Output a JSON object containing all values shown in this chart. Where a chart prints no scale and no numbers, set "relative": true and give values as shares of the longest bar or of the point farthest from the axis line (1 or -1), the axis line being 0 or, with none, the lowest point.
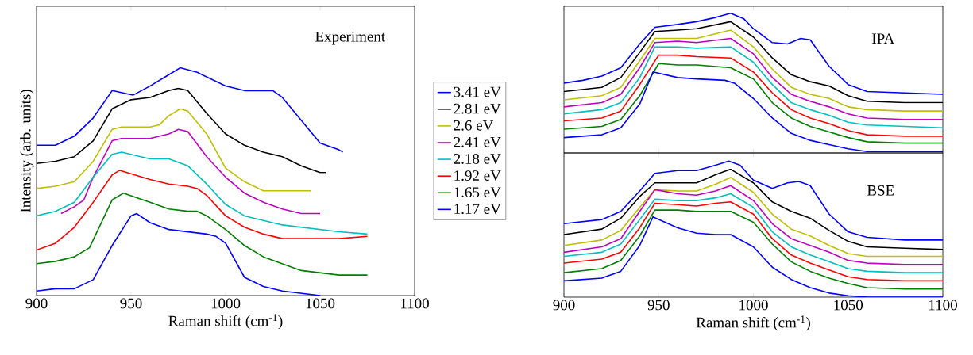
{
  "chart_data": [
    {
      "type": "line",
      "title": "Experiment",
      "xlabel": "Raman shift (cm$^{-1}$)",
      "ylabel": "Intensity (arb. units)",
      "relative": true,
      "xlim": [
        900,
        1100
      ],
      "xticks": [
        900,
        950,
        1000,
        1050,
        1100
      ],
      "tick_labels": "x",
      "legend": "right",
      "series": [
        {
          "name": "3.41 eV",
          "color": "#0000ff",
          "x": [
            900,
            910,
            920,
            930,
            940,
            951,
            960,
            970,
            976,
            985,
            1000,
            1010,
            1020,
            1025,
            1030,
            1040,
            1050,
            1060,
            1062
          ],
          "values": [
            0.66,
            0.66,
            0.7,
            0.78,
            0.9,
            0.88,
            0.92,
            0.97,
            1.0,
            0.98,
            0.92,
            0.9,
            0.9,
            0.9,
            0.87,
            0.77,
            0.67,
            0.64,
            0.63
          ]
        },
        {
          "name": "2.81 eV",
          "color": "#000000",
          "x": [
            900,
            910,
            920,
            930,
            940,
            950,
            960,
            970,
            975,
            980,
            990,
            1000,
            1010,
            1020,
            1030,
            1040,
            1050,
            1053
          ],
          "values": [
            0.58,
            0.59,
            0.61,
            0.68,
            0.82,
            0.86,
            0.87,
            0.9,
            0.91,
            0.9,
            0.8,
            0.71,
            0.66,
            0.63,
            0.61,
            0.57,
            0.54,
            0.54
          ]
        },
        {
          "name": "2.6 eV",
          "color": "#bfbf00",
          "x": [
            900,
            910,
            920,
            930,
            940,
            945,
            960,
            965,
            970,
            976,
            980,
            990,
            1000,
            1010,
            1020,
            1030,
            1040,
            1045
          ],
          "values": [
            0.47,
            0.48,
            0.5,
            0.59,
            0.73,
            0.74,
            0.74,
            0.75,
            0.79,
            0.82,
            0.81,
            0.71,
            0.56,
            0.5,
            0.46,
            0.46,
            0.46,
            0.46
          ]
        },
        {
          "name": "2.41 eV",
          "color": "#bf00bf",
          "x": [
            913,
            920,
            925,
            930,
            940,
            945,
            960,
            970,
            975,
            980,
            990,
            1000,
            1010,
            1020,
            1030,
            1040,
            1050
          ],
          "values": [
            0.36,
            0.39,
            0.42,
            0.52,
            0.68,
            0.69,
            0.69,
            0.71,
            0.73,
            0.72,
            0.61,
            0.52,
            0.45,
            0.41,
            0.38,
            0.36,
            0.36
          ]
        },
        {
          "name": "2.18 eV",
          "color": "#00bfbf",
          "x": [
            900,
            910,
            920,
            930,
            940,
            945,
            960,
            970,
            980,
            990,
            1000,
            1010,
            1020,
            1030,
            1040,
            1050,
            1060,
            1075
          ],
          "values": [
            0.35,
            0.37,
            0.41,
            0.52,
            0.62,
            0.63,
            0.6,
            0.6,
            0.57,
            0.49,
            0.4,
            0.35,
            0.33,
            0.31,
            0.3,
            0.29,
            0.28,
            0.27
          ]
        },
        {
          "name": "1.92 eV",
          "color": "#ff0000",
          "x": [
            900,
            910,
            920,
            930,
            940,
            944,
            960,
            970,
            980,
            985,
            990,
            1000,
            1010,
            1020,
            1030,
            1040,
            1050,
            1060,
            1075
          ],
          "values": [
            0.2,
            0.23,
            0.3,
            0.41,
            0.53,
            0.55,
            0.51,
            0.49,
            0.48,
            0.47,
            0.44,
            0.35,
            0.3,
            0.27,
            0.25,
            0.25,
            0.25,
            0.25,
            0.26
          ]
        },
        {
          "name": "1.65 eV",
          "color": "#007f00",
          "x": [
            900,
            910,
            920,
            928,
            940,
            946,
            960,
            970,
            980,
            985,
            990,
            1000,
            1010,
            1020,
            1030,
            1040,
            1050,
            1060,
            1075
          ],
          "values": [
            0.14,
            0.15,
            0.17,
            0.21,
            0.42,
            0.45,
            0.41,
            0.38,
            0.37,
            0.37,
            0.35,
            0.29,
            0.22,
            0.17,
            0.14,
            0.11,
            0.1,
            0.09,
            0.09
          ]
        },
        {
          "name": "1.17 eV",
          "color": "#0000ff",
          "x": [
            900,
            910,
            920,
            930,
            940,
            950,
            953,
            960,
            970,
            980,
            990,
            995,
            1000,
            1010,
            1020,
            1030,
            1040,
            1050
          ],
          "values": [
            0.02,
            0.03,
            0.03,
            0.07,
            0.22,
            0.35,
            0.36,
            0.32,
            0.29,
            0.28,
            0.27,
            0.26,
            0.23,
            0.08,
            0.04,
            0.02,
            0.01,
            0.0
          ]
        }
      ]
    },
    {
      "type": "line",
      "title": "IPA",
      "relative": true,
      "xlim": [
        900,
        1100
      ],
      "xticks": [
        900,
        950,
        1000,
        1050,
        1100
      ],
      "tick_labels": false,
      "series": [
        {
          "color": "#0000ff",
          "x": [
            900,
            910,
            920,
            930,
            940,
            948,
            960,
            970,
            980,
            988,
            995,
            1000,
            1010,
            1018,
            1025,
            1030,
            1040,
            1050,
            1060,
            1080,
            1100
          ],
          "values": [
            0.5,
            0.52,
            0.55,
            0.61,
            0.78,
            0.9,
            0.92,
            0.94,
            0.97,
            1.0,
            0.96,
            0.89,
            0.79,
            0.78,
            0.82,
            0.81,
            0.62,
            0.49,
            0.44,
            0.43,
            0.42
          ]
        },
        {
          "color": "#000000",
          "x": [
            900,
            920,
            930,
            940,
            948,
            960,
            970,
            988,
            1000,
            1010,
            1020,
            1030,
            1040,
            1050,
            1060,
            1080,
            1100
          ],
          "values": [
            0.44,
            0.47,
            0.54,
            0.72,
            0.87,
            0.88,
            0.89,
            0.94,
            0.83,
            0.68,
            0.56,
            0.51,
            0.48,
            0.41,
            0.37,
            0.36,
            0.36
          ]
        },
        {
          "color": "#bfbf00",
          "x": [
            900,
            920,
            930,
            940,
            948,
            960,
            970,
            988,
            1000,
            1010,
            1020,
            1030,
            1040,
            1050,
            1060,
            1080,
            1100
          ],
          "values": [
            0.38,
            0.41,
            0.47,
            0.66,
            0.82,
            0.82,
            0.82,
            0.88,
            0.76,
            0.6,
            0.47,
            0.42,
            0.39,
            0.33,
            0.31,
            0.3,
            0.3
          ]
        },
        {
          "color": "#bf00bf",
          "x": [
            900,
            920,
            930,
            940,
            948,
            960,
            970,
            988,
            1000,
            1010,
            1020,
            1030,
            1040,
            1050,
            1060,
            1080,
            1100
          ],
          "values": [
            0.33,
            0.36,
            0.42,
            0.61,
            0.79,
            0.8,
            0.79,
            0.82,
            0.71,
            0.54,
            0.42,
            0.37,
            0.33,
            0.28,
            0.25,
            0.24,
            0.24
          ]
        },
        {
          "color": "#00bfbf",
          "x": [
            900,
            920,
            930,
            940,
            948,
            960,
            970,
            988,
            1000,
            1010,
            1020,
            1030,
            1040,
            1050,
            1060,
            1080,
            1100
          ],
          "values": [
            0.28,
            0.31,
            0.36,
            0.54,
            0.76,
            0.76,
            0.75,
            0.76,
            0.65,
            0.49,
            0.36,
            0.31,
            0.27,
            0.22,
            0.2,
            0.19,
            0.18
          ]
        },
        {
          "color": "#ff0000",
          "x": [
            900,
            920,
            930,
            940,
            950,
            960,
            970,
            988,
            1000,
            1010,
            1020,
            1030,
            1040,
            1050,
            1060,
            1080,
            1100
          ],
          "values": [
            0.23,
            0.25,
            0.3,
            0.49,
            0.7,
            0.7,
            0.69,
            0.68,
            0.58,
            0.43,
            0.31,
            0.25,
            0.21,
            0.16,
            0.13,
            0.12,
            0.12
          ]
        },
        {
          "color": "#007f00",
          "x": [
            900,
            920,
            930,
            940,
            950,
            960,
            970,
            988,
            1000,
            1010,
            1020,
            1030,
            1040,
            1050,
            1060,
            1080,
            1100
          ],
          "values": [
            0.17,
            0.19,
            0.24,
            0.41,
            0.64,
            0.63,
            0.63,
            0.61,
            0.53,
            0.36,
            0.25,
            0.19,
            0.15,
            0.11,
            0.08,
            0.07,
            0.07
          ]
        },
        {
          "color": "#0000ff",
          "x": [
            900,
            920,
            930,
            940,
            947,
            960,
            970,
            985,
            990,
            1000,
            1010,
            1020,
            1030,
            1040,
            1050,
            1060,
            1080,
            1100
          ],
          "values": [
            0.11,
            0.13,
            0.18,
            0.35,
            0.58,
            0.54,
            0.53,
            0.52,
            0.5,
            0.39,
            0.25,
            0.14,
            0.09,
            0.06,
            0.03,
            0.01,
            0.01,
            0.01
          ]
        }
      ]
    },
    {
      "type": "line",
      "title": "BSE",
      "xlabel": "Raman shift (cm$^{-1}$)",
      "relative": true,
      "xlim": [
        900,
        1100
      ],
      "xticks": [
        900,
        950,
        1000,
        1050,
        1100
      ],
      "tick_labels": "x",
      "series": [
        {
          "color": "#0000ff",
          "x": [
            900,
            920,
            930,
            940,
            948,
            960,
            970,
            980,
            987,
            993,
            1000,
            1010,
            1018,
            1024,
            1030,
            1040,
            1050,
            1060,
            1080,
            1100
          ],
          "values": [
            0.54,
            0.57,
            0.63,
            0.78,
            0.91,
            0.93,
            0.93,
            0.97,
            1.0,
            0.97,
            0.86,
            0.8,
            0.84,
            0.85,
            0.82,
            0.61,
            0.48,
            0.44,
            0.42,
            0.42
          ]
        },
        {
          "color": "#000000",
          "x": [
            900,
            920,
            930,
            940,
            948,
            960,
            970,
            980,
            988,
            1000,
            1010,
            1020,
            1030,
            1040,
            1050,
            1060,
            1080,
            1100
          ],
          "values": [
            0.46,
            0.5,
            0.58,
            0.74,
            0.84,
            0.84,
            0.84,
            0.9,
            0.94,
            0.84,
            0.7,
            0.63,
            0.58,
            0.49,
            0.41,
            0.37,
            0.36,
            0.35
          ]
        },
        {
          "color": "#bfbf00",
          "x": [
            900,
            920,
            930,
            940,
            948,
            960,
            970,
            980,
            988,
            1000,
            1010,
            1020,
            1030,
            1040,
            1050,
            1060,
            1080,
            1100
          ],
          "values": [
            0.38,
            0.42,
            0.49,
            0.66,
            0.79,
            0.78,
            0.78,
            0.83,
            0.88,
            0.77,
            0.61,
            0.5,
            0.45,
            0.38,
            0.32,
            0.3,
            0.3,
            0.3
          ]
        },
        {
          "color": "#bf00bf",
          "x": [
            900,
            920,
            930,
            940,
            948,
            960,
            970,
            980,
            988,
            1000,
            1010,
            1020,
            1030,
            1040,
            1050,
            1060,
            1080,
            1100
          ],
          "values": [
            0.33,
            0.37,
            0.43,
            0.63,
            0.79,
            0.76,
            0.75,
            0.78,
            0.82,
            0.71,
            0.54,
            0.43,
            0.38,
            0.33,
            0.27,
            0.25,
            0.24,
            0.24
          ]
        },
        {
          "color": "#00bfbf",
          "x": [
            900,
            920,
            930,
            940,
            948,
            960,
            970,
            980,
            988,
            1000,
            1010,
            1020,
            1030,
            1040,
            1050,
            1060,
            1080,
            1100
          ],
          "values": [
            0.3,
            0.33,
            0.39,
            0.57,
            0.72,
            0.71,
            0.71,
            0.73,
            0.76,
            0.66,
            0.48,
            0.37,
            0.31,
            0.26,
            0.21,
            0.19,
            0.18,
            0.18
          ]
        },
        {
          "color": "#ff0000",
          "x": [
            900,
            920,
            930,
            940,
            948,
            960,
            970,
            980,
            988,
            1000,
            1010,
            1020,
            1030,
            1040,
            1050,
            1060,
            1080,
            1100
          ],
          "values": [
            0.25,
            0.28,
            0.33,
            0.51,
            0.69,
            0.68,
            0.67,
            0.69,
            0.7,
            0.61,
            0.43,
            0.31,
            0.25,
            0.2,
            0.15,
            0.13,
            0.12,
            0.12
          ]
        },
        {
          "color": "#007f00",
          "x": [
            900,
            920,
            930,
            940,
            948,
            960,
            970,
            980,
            988,
            1000,
            1010,
            1020,
            1030,
            1040,
            1050,
            1060,
            1080,
            1100
          ],
          "values": [
            0.18,
            0.21,
            0.27,
            0.45,
            0.64,
            0.64,
            0.63,
            0.63,
            0.63,
            0.55,
            0.39,
            0.26,
            0.19,
            0.14,
            0.1,
            0.07,
            0.06,
            0.06
          ]
        },
        {
          "color": "#0000ff",
          "x": [
            900,
            920,
            930,
            940,
            947,
            960,
            970,
            980,
            988,
            1000,
            1010,
            1020,
            1030,
            1040,
            1050,
            1060,
            1100
          ],
          "values": [
            0.12,
            0.14,
            0.19,
            0.38,
            0.59,
            0.51,
            0.47,
            0.46,
            0.46,
            0.37,
            0.22,
            0.13,
            0.07,
            0.03,
            0.01,
            0.0,
            0.0
          ]
        }
      ]
    }
  ]
}
